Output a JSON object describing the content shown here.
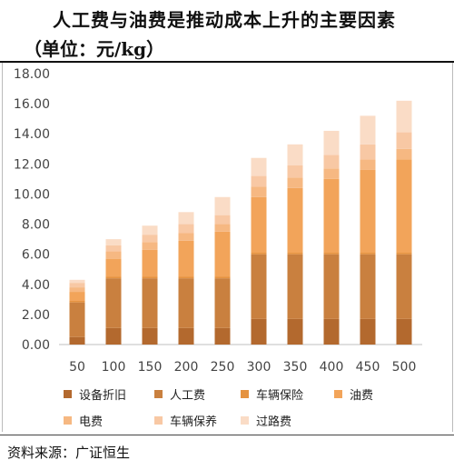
{
  "header": {
    "title": "人工费与油费是推动成本上升的主要因素",
    "subtitle": "（单位：元/kg）"
  },
  "footer": {
    "source": "资料来源：广证恒生"
  },
  "chart_data": {
    "type": "bar",
    "stacked": true,
    "categories": [
      "50",
      "100",
      "150",
      "200",
      "250",
      "300",
      "350",
      "400",
      "450",
      "500"
    ],
    "ylim": [
      0,
      18
    ],
    "yticks": [
      "0.00",
      "2.00",
      "4.00",
      "6.00",
      "8.00",
      "10.00",
      "12.00",
      "14.00",
      "16.00",
      "18.00"
    ],
    "grid": false,
    "legend_position": "bottom",
    "series": [
      {
        "name": "设备折旧",
        "color": "#B3692E",
        "values": [
          0.5,
          1.1,
          1.1,
          1.1,
          1.1,
          1.7,
          1.7,
          1.7,
          1.7,
          1.7
        ]
      },
      {
        "name": "人工费",
        "color": "#C9803F",
        "values": [
          2.3,
          3.3,
          3.3,
          3.3,
          3.3,
          4.3,
          4.3,
          4.3,
          4.3,
          4.3
        ]
      },
      {
        "name": "车辆保险",
        "color": "#E59341",
        "values": [
          0.1,
          0.1,
          0.1,
          0.1,
          0.1,
          0.1,
          0.1,
          0.1,
          0.1,
          0.1
        ]
      },
      {
        "name": "油费",
        "color": "#F2A45A",
        "values": [
          0.6,
          1.2,
          1.8,
          2.4,
          3.0,
          3.7,
          4.3,
          4.9,
          5.5,
          6.2
        ]
      },
      {
        "name": "电费",
        "color": "#F6B882",
        "values": [
          0.3,
          0.5,
          0.5,
          0.5,
          0.5,
          0.7,
          0.7,
          0.7,
          0.7,
          0.7
        ]
      },
      {
        "name": "车辆保养",
        "color": "#F8C8A4",
        "values": [
          0.3,
          0.4,
          0.5,
          0.6,
          0.6,
          0.7,
          0.8,
          0.9,
          1.0,
          1.1
        ]
      },
      {
        "name": "过路费",
        "color": "#FADCC6",
        "values": [
          0.2,
          0.4,
          0.6,
          0.8,
          1.2,
          1.2,
          1.4,
          1.6,
          1.9,
          2.1
        ]
      }
    ]
  }
}
